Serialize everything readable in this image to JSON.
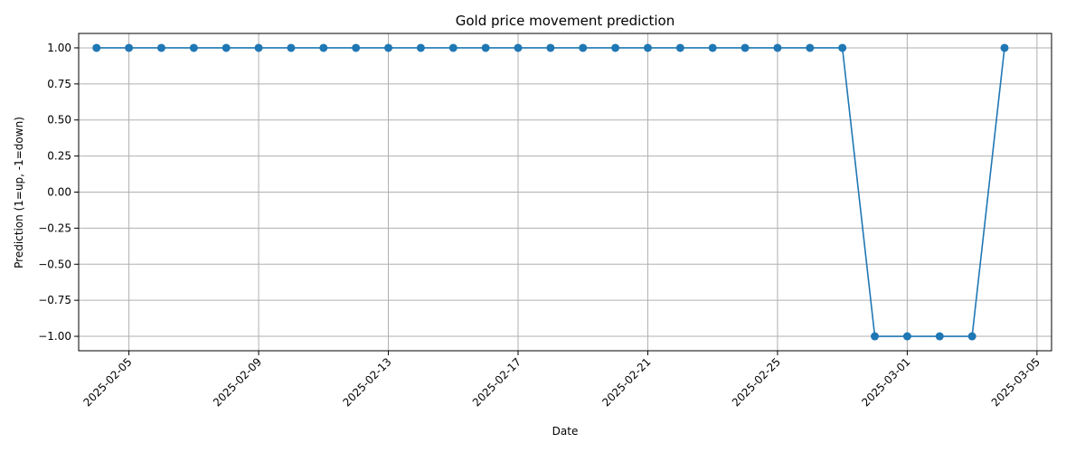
{
  "chart_data": {
    "type": "line",
    "title": "Gold price movement prediction",
    "xlabel": "Date",
    "ylabel": "Prediction (1=up, -1=down)",
    "x": [
      "2025-02-04",
      "2025-02-05",
      "2025-02-06",
      "2025-02-07",
      "2025-02-08",
      "2025-02-09",
      "2025-02-10",
      "2025-02-11",
      "2025-02-12",
      "2025-02-13",
      "2025-02-14",
      "2025-02-15",
      "2025-02-16",
      "2025-02-17",
      "2025-02-18",
      "2025-02-19",
      "2025-02-20",
      "2025-02-21",
      "2025-02-22",
      "2025-02-23",
      "2025-02-24",
      "2025-02-25",
      "2025-02-26",
      "2025-02-27",
      "2025-02-28",
      "2025-03-01",
      "2025-03-02",
      "2025-03-03",
      "2025-03-04"
    ],
    "series": [
      {
        "values": [
          1,
          1,
          1,
          1,
          1,
          1,
          1,
          1,
          1,
          1,
          1,
          1,
          1,
          1,
          1,
          1,
          1,
          1,
          1,
          1,
          1,
          1,
          1,
          1,
          -1,
          -1,
          -1,
          -1,
          1
        ],
        "color": "#1f77b4",
        "marker": "circle"
      }
    ],
    "xticks": [
      "2025-02-05",
      "2025-02-09",
      "2025-02-13",
      "2025-02-17",
      "2025-02-21",
      "2025-02-25",
      "2025-03-01",
      "2025-03-05"
    ],
    "yticks": [
      1.0,
      0.75,
      0.5,
      0.25,
      0.0,
      -0.25,
      -0.5,
      -0.75,
      -1.0
    ],
    "ytick_labels": [
      "1.00",
      "0.75",
      "0.50",
      "0.25",
      "0.00",
      "−0.25",
      "−0.50",
      "−0.75",
      "−1.00"
    ],
    "xlim": [
      "2025-02-03",
      "2025-03-05"
    ],
    "ylim": [
      -1.1,
      1.1
    ],
    "grid": true,
    "legend": "none"
  }
}
